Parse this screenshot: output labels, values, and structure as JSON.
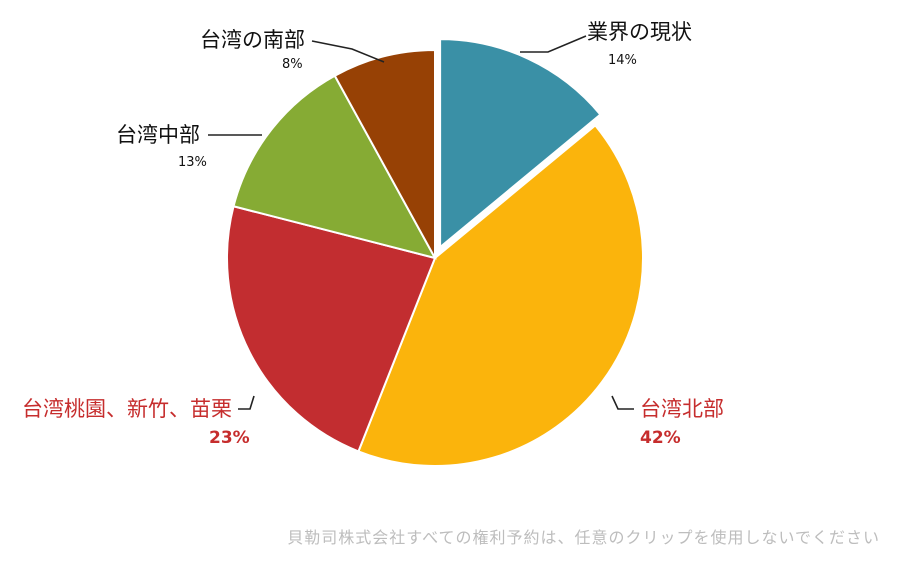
{
  "chart_data": {
    "type": "pie",
    "slices": [
      {
        "label": "業界の現状",
        "value": 14,
        "pct_text": "14%",
        "color": "#3a90a6",
        "exploded": true,
        "label_color": "#111111"
      },
      {
        "label": "台湾北部",
        "value": 42,
        "pct_text": "42%",
        "color": "#fbb40c",
        "exploded": false,
        "label_color": "#c62d2d"
      },
      {
        "label": "台湾桃園、新竹、苗栗",
        "value": 23,
        "pct_text": "23%",
        "color": "#c22d30",
        "exploded": false,
        "label_color": "#c62d2d"
      },
      {
        "label": "台湾中部",
        "value": 13,
        "pct_text": "13%",
        "color": "#86ab34",
        "exploded": false,
        "label_color": "#111111"
      },
      {
        "label": "台湾の南部",
        "value": 8,
        "pct_text": "8%",
        "color": "#974105",
        "exploded": false,
        "label_color": "#111111"
      }
    ]
  },
  "footer": {
    "text": "貝勒司株式会社すべての権利予約は、任意のクリップを使用しないでください"
  }
}
